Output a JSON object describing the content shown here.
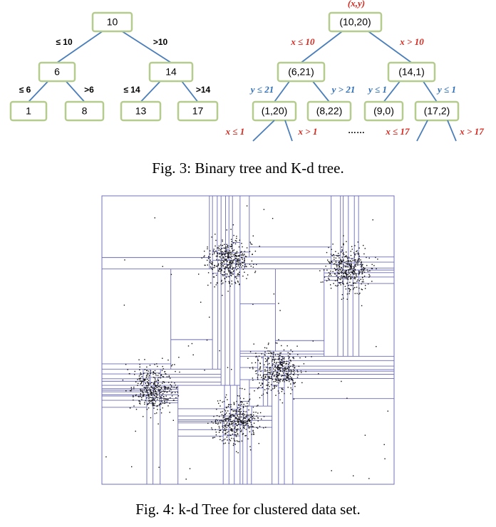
{
  "figure3": {
    "binary_tree": {
      "nodes": [
        "10",
        "6",
        "14",
        "1",
        "8",
        "13",
        "17"
      ],
      "edges": [
        "≤ 10",
        ">10",
        "≤ 6",
        ">6",
        "≤ 14",
        ">14"
      ]
    },
    "kd_tree": {
      "header": "(x,y)",
      "nodes": [
        "(10,20)",
        "(6,21)",
        "(14,1)",
        "(1,20)",
        "(8,22)",
        "(9,0)",
        "(17,2)"
      ],
      "edges": [
        "x ≤ 10",
        "x > 10",
        "y ≤ 21",
        "y > 21",
        "y ≤ 1",
        "y ≤ 1",
        "x ≤ 1",
        "x > 1",
        "x ≤ 17",
        "x > 17"
      ],
      "ellipsis": "……"
    },
    "caption": "Fig. 3: Binary tree and K-d tree."
  },
  "figure4": {
    "caption": "Fig. 4: k-d Tree for clustered data set."
  }
}
